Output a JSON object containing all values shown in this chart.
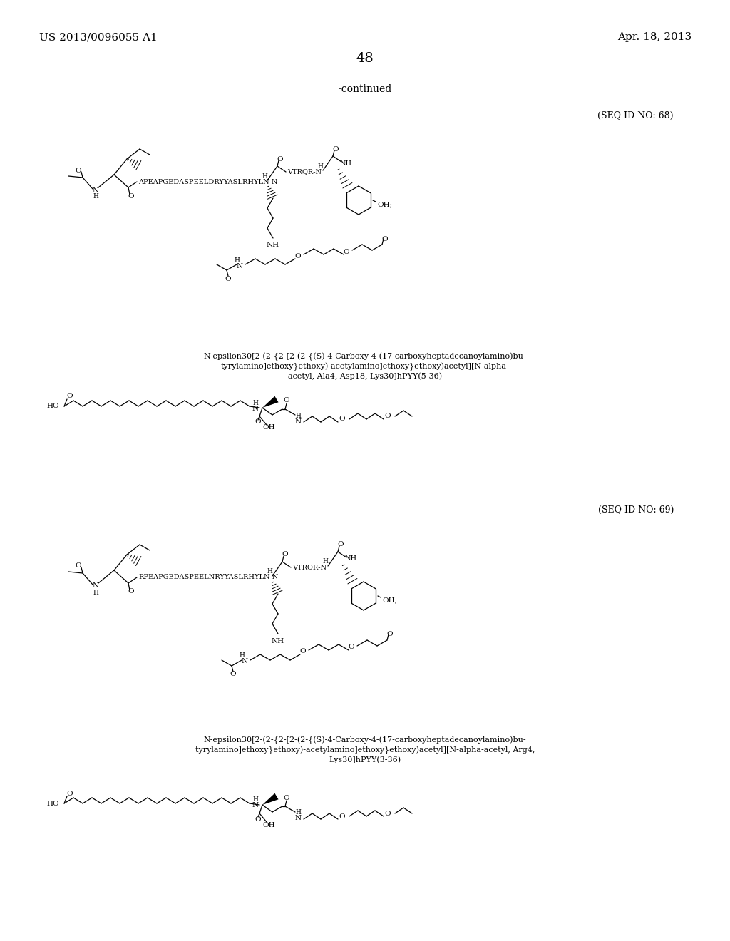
{
  "background_color": "#ffffff",
  "header_left": "US 2013/0096055 A1",
  "header_right": "Apr. 18, 2013",
  "page_number": "48",
  "continued_text": "-continued",
  "seq_id_68": "(SEQ ID NO: 68)",
  "seq_id_69": "(SEQ ID NO: 69)",
  "caption_68_line1": "N-epsilon30[2-(2-{2-[2-(2-{(S)-4-Carboxy-4-(17-carboxyheptadecanoylamino)bu-",
  "caption_68_line2": "tyrylamino]ethoxy}ethoxy)-acetylamino]ethoxy}ethoxy)acetyl][N-alpha-",
  "caption_68_line3": "acetyl, Ala4, Asp18, Lys30]hPYY(5-36)",
  "caption_69_line1": "N-epsilon30[2-(2-{2-[2-(2-{(S)-4-Carboxy-4-(17-carboxyheptadecanoylamino)bu-",
  "caption_69_line2": "tyrylamino]ethoxy}ethoxy)-acetylamino]ethoxy}ethoxy)acetyl][N-alpha-acetyl, Arg4,",
  "caption_69_line3": "Lys30]hPYY(3-36)",
  "font_size_header": 11,
  "font_size_page_num": 14,
  "font_size_continued": 10,
  "font_size_seq": 9,
  "font_size_caption": 8
}
